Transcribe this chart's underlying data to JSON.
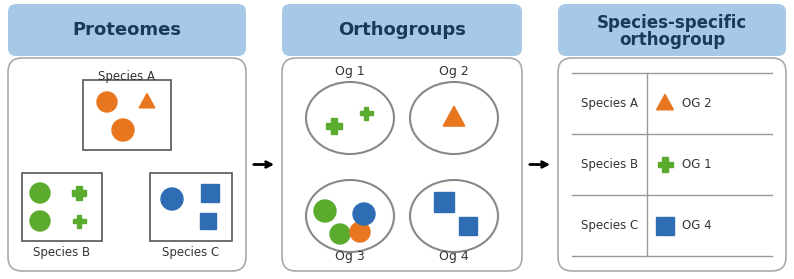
{
  "panel1_title": "Proteomes",
  "panel2_title": "Orthogroups",
  "panel3_title_l1": "Species-specific",
  "panel3_title_l2": "orthogroup",
  "header_bg": "#a8c8e8",
  "panel_bg": "#ffffff",
  "panel_border": "#aaaaaa",
  "orange": "#e8761e",
  "green": "#5aab2e",
  "blue": "#2e6db4",
  "text_color": "#333333",
  "species_a_label": "Species A",
  "species_b_label": "Species B",
  "species_c_label": "Species C",
  "og1_label": "Og 1",
  "og2_label": "Og 2",
  "og3_label": "Og 3",
  "og4_label": "Og 4",
  "og2_text": "OG 2",
  "og1_text": "OG 1",
  "og4_text": "OG 4",
  "fig_w": 7.94,
  "fig_h": 2.79,
  "dpi": 100
}
